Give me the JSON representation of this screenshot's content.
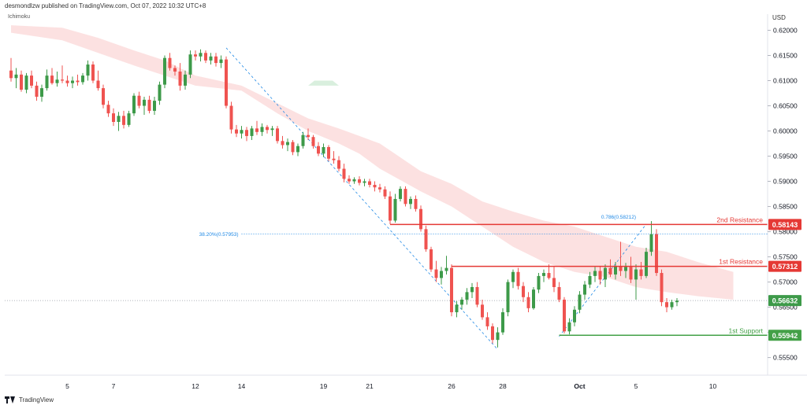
{
  "header": {
    "publisher_line": "desmondlzw published on TradingView.com, Oct 07, 2022 10:32 UTC+8"
  },
  "indicator": {
    "label": "Ichimoku"
  },
  "axis": {
    "currency": "USD"
  },
  "branding": {
    "label": "TradingView"
  },
  "colors": {
    "up": "#26a69a",
    "up_candle": "#3d9a49",
    "down": "#ef5350",
    "cloud_bear": "#fbdcdc",
    "cloud_bull": "#d9efde",
    "resistance": "#e53935",
    "support": "#43a047",
    "fib": "#1e88e5"
  },
  "chart_data": {
    "type": "candlestick",
    "title": "",
    "y_axis": {
      "ylim": [
        0.5515,
        0.6232
      ],
      "ticks": [
        "0.62000",
        "0.61500",
        "0.61000",
        "0.60500",
        "0.60000",
        "0.59500",
        "0.59000",
        "0.58500",
        "0.58000",
        "0.57500",
        "0.57000",
        "0.56500",
        "0.56000",
        "0.55500"
      ]
    },
    "x_axis": {
      "tick_labels": [
        {
          "label": "5",
          "bar": 11
        },
        {
          "label": "7",
          "bar": 20
        },
        {
          "label": "12",
          "bar": 36
        },
        {
          "label": "14",
          "bar": 45
        },
        {
          "label": "19",
          "bar": 61
        },
        {
          "label": "21",
          "bar": 70
        },
        {
          "label": "26",
          "bar": 86
        },
        {
          "label": "28",
          "bar": 96
        },
        {
          "label": "Oct",
          "bar": 111
        },
        {
          "label": "5",
          "bar": 122
        },
        {
          "label": "10",
          "bar": 137
        }
      ]
    },
    "candles": [
      {
        "o": 0.612,
        "h": 0.6145,
        "l": 0.6098,
        "c": 0.6105
      },
      {
        "o": 0.6105,
        "h": 0.6125,
        "l": 0.6085,
        "c": 0.6112
      },
      {
        "o": 0.6112,
        "h": 0.612,
        "l": 0.6078,
        "c": 0.6082
      },
      {
        "o": 0.6082,
        "h": 0.6115,
        "l": 0.6075,
        "c": 0.611
      },
      {
        "o": 0.611,
        "h": 0.612,
        "l": 0.6085,
        "c": 0.609
      },
      {
        "o": 0.609,
        "h": 0.6098,
        "l": 0.606,
        "c": 0.6068
      },
      {
        "o": 0.6068,
        "h": 0.6092,
        "l": 0.6058,
        "c": 0.6085
      },
      {
        "o": 0.6085,
        "h": 0.6122,
        "l": 0.608,
        "c": 0.611
      },
      {
        "o": 0.611,
        "h": 0.6125,
        "l": 0.6092,
        "c": 0.6095
      },
      {
        "o": 0.6095,
        "h": 0.6118,
        "l": 0.6088,
        "c": 0.6102
      },
      {
        "o": 0.6102,
        "h": 0.613,
        "l": 0.6095,
        "c": 0.61
      },
      {
        "o": 0.61,
        "h": 0.611,
        "l": 0.6088,
        "c": 0.6095
      },
      {
        "o": 0.6095,
        "h": 0.6108,
        "l": 0.6085,
        "c": 0.61
      },
      {
        "o": 0.61,
        "h": 0.6112,
        "l": 0.609,
        "c": 0.6097
      },
      {
        "o": 0.6097,
        "h": 0.6115,
        "l": 0.6092,
        "c": 0.611
      },
      {
        "o": 0.611,
        "h": 0.614,
        "l": 0.61,
        "c": 0.6132
      },
      {
        "o": 0.6132,
        "h": 0.6138,
        "l": 0.6095,
        "c": 0.61
      },
      {
        "o": 0.61,
        "h": 0.612,
        "l": 0.608,
        "c": 0.6085
      },
      {
        "o": 0.6085,
        "h": 0.6092,
        "l": 0.6045,
        "c": 0.6052
      },
      {
        "o": 0.6052,
        "h": 0.606,
        "l": 0.6028,
        "c": 0.6035
      },
      {
        "o": 0.6035,
        "h": 0.6045,
        "l": 0.601,
        "c": 0.6018
      },
      {
        "o": 0.6018,
        "h": 0.6038,
        "l": 0.6,
        "c": 0.603
      },
      {
        "o": 0.603,
        "h": 0.604,
        "l": 0.6005,
        "c": 0.6012
      },
      {
        "o": 0.6012,
        "h": 0.604,
        "l": 0.6008,
        "c": 0.6035
      },
      {
        "o": 0.6035,
        "h": 0.6075,
        "l": 0.603,
        "c": 0.607
      },
      {
        "o": 0.607,
        "h": 0.6078,
        "l": 0.6045,
        "c": 0.605
      },
      {
        "o": 0.605,
        "h": 0.6068,
        "l": 0.6032,
        "c": 0.6062
      },
      {
        "o": 0.6062,
        "h": 0.607,
        "l": 0.6035,
        "c": 0.604
      },
      {
        "o": 0.604,
        "h": 0.6068,
        "l": 0.6032,
        "c": 0.606
      },
      {
        "o": 0.606,
        "h": 0.6098,
        "l": 0.6052,
        "c": 0.6092
      },
      {
        "o": 0.6092,
        "h": 0.615,
        "l": 0.6085,
        "c": 0.6145
      },
      {
        "o": 0.6145,
        "h": 0.6155,
        "l": 0.612,
        "c": 0.6125
      },
      {
        "o": 0.6125,
        "h": 0.613,
        "l": 0.611,
        "c": 0.6118
      },
      {
        "o": 0.6118,
        "h": 0.6135,
        "l": 0.608,
        "c": 0.609
      },
      {
        "o": 0.609,
        "h": 0.612,
        "l": 0.6082,
        "c": 0.6112
      },
      {
        "o": 0.6112,
        "h": 0.616,
        "l": 0.6105,
        "c": 0.6152
      },
      {
        "o": 0.6152,
        "h": 0.616,
        "l": 0.614,
        "c": 0.6148
      },
      {
        "o": 0.6148,
        "h": 0.6162,
        "l": 0.6138,
        "c": 0.6155
      },
      {
        "o": 0.6155,
        "h": 0.616,
        "l": 0.6135,
        "c": 0.614
      },
      {
        "o": 0.614,
        "h": 0.6155,
        "l": 0.6132,
        "c": 0.6148
      },
      {
        "o": 0.6148,
        "h": 0.6155,
        "l": 0.6128,
        "c": 0.6135
      },
      {
        "o": 0.6135,
        "h": 0.615,
        "l": 0.6125,
        "c": 0.6142
      },
      {
        "o": 0.6142,
        "h": 0.6148,
        "l": 0.6045,
        "c": 0.605
      },
      {
        "o": 0.605,
        "h": 0.6058,
        "l": 0.5995,
        "c": 0.6003
      },
      {
        "o": 0.6003,
        "h": 0.6012,
        "l": 0.5988,
        "c": 0.5995
      },
      {
        "o": 0.5995,
        "h": 0.601,
        "l": 0.5985,
        "c": 0.6002
      },
      {
        "o": 0.6002,
        "h": 0.6008,
        "l": 0.598,
        "c": 0.599
      },
      {
        "o": 0.599,
        "h": 0.601,
        "l": 0.5982,
        "c": 0.6005
      },
      {
        "o": 0.6005,
        "h": 0.602,
        "l": 0.5992,
        "c": 0.5998
      },
      {
        "o": 0.5998,
        "h": 0.6015,
        "l": 0.599,
        "c": 0.6008
      },
      {
        "o": 0.6008,
        "h": 0.6012,
        "l": 0.5995,
        "c": 0.6002
      },
      {
        "o": 0.6002,
        "h": 0.601,
        "l": 0.599,
        "c": 0.6005
      },
      {
        "o": 0.6005,
        "h": 0.601,
        "l": 0.5975,
        "c": 0.598
      },
      {
        "o": 0.598,
        "h": 0.599,
        "l": 0.5965,
        "c": 0.5972
      },
      {
        "o": 0.5972,
        "h": 0.5985,
        "l": 0.596,
        "c": 0.5978
      },
      {
        "o": 0.5978,
        "h": 0.5982,
        "l": 0.5952,
        "c": 0.5958
      },
      {
        "o": 0.5958,
        "h": 0.5975,
        "l": 0.595,
        "c": 0.597
      },
      {
        "o": 0.597,
        "h": 0.5998,
        "l": 0.5965,
        "c": 0.5992
      },
      {
        "o": 0.5992,
        "h": 0.6005,
        "l": 0.5982,
        "c": 0.5988
      },
      {
        "o": 0.5988,
        "h": 0.5992,
        "l": 0.5965,
        "c": 0.597
      },
      {
        "o": 0.597,
        "h": 0.5978,
        "l": 0.595,
        "c": 0.5955
      },
      {
        "o": 0.5955,
        "h": 0.5975,
        "l": 0.5948,
        "c": 0.5968
      },
      {
        "o": 0.5968,
        "h": 0.5972,
        "l": 0.594,
        "c": 0.5945
      },
      {
        "o": 0.5945,
        "h": 0.596,
        "l": 0.5935,
        "c": 0.5942
      },
      {
        "o": 0.5942,
        "h": 0.595,
        "l": 0.592,
        "c": 0.5925
      },
      {
        "o": 0.5925,
        "h": 0.5935,
        "l": 0.5898,
        "c": 0.5905
      },
      {
        "o": 0.5905,
        "h": 0.5912,
        "l": 0.5895,
        "c": 0.59
      },
      {
        "o": 0.59,
        "h": 0.5908,
        "l": 0.5895,
        "c": 0.5904
      },
      {
        "o": 0.5904,
        "h": 0.591,
        "l": 0.5892,
        "c": 0.5897
      },
      {
        "o": 0.5897,
        "h": 0.5905,
        "l": 0.589,
        "c": 0.59
      },
      {
        "o": 0.59,
        "h": 0.5905,
        "l": 0.5888,
        "c": 0.5893
      },
      {
        "o": 0.5893,
        "h": 0.59,
        "l": 0.588,
        "c": 0.5888
      },
      {
        "o": 0.5888,
        "h": 0.5895,
        "l": 0.5878,
        "c": 0.5884
      },
      {
        "o": 0.5884,
        "h": 0.589,
        "l": 0.5865,
        "c": 0.587
      },
      {
        "o": 0.587,
        "h": 0.588,
        "l": 0.5815,
        "c": 0.5822
      },
      {
        "o": 0.5822,
        "h": 0.5875,
        "l": 0.5818,
        "c": 0.5865
      },
      {
        "o": 0.5865,
        "h": 0.589,
        "l": 0.586,
        "c": 0.5885
      },
      {
        "o": 0.5885,
        "h": 0.589,
        "l": 0.585,
        "c": 0.5855
      },
      {
        "o": 0.5855,
        "h": 0.587,
        "l": 0.5845,
        "c": 0.5865
      },
      {
        "o": 0.5865,
        "h": 0.5872,
        "l": 0.584,
        "c": 0.5845
      },
      {
        "o": 0.5845,
        "h": 0.5852,
        "l": 0.58,
        "c": 0.5805
      },
      {
        "o": 0.5805,
        "h": 0.5812,
        "l": 0.576,
        "c": 0.5765
      },
      {
        "o": 0.5765,
        "h": 0.577,
        "l": 0.572,
        "c": 0.5725
      },
      {
        "o": 0.5725,
        "h": 0.5742,
        "l": 0.57,
        "c": 0.5708
      },
      {
        "o": 0.5708,
        "h": 0.573,
        "l": 0.5695,
        "c": 0.5722
      },
      {
        "o": 0.5722,
        "h": 0.5752,
        "l": 0.5715,
        "c": 0.5728
      },
      {
        "o": 0.5728,
        "h": 0.5735,
        "l": 0.5632,
        "c": 0.564
      },
      {
        "o": 0.564,
        "h": 0.5662,
        "l": 0.563,
        "c": 0.5655
      },
      {
        "o": 0.5655,
        "h": 0.567,
        "l": 0.5645,
        "c": 0.5665
      },
      {
        "o": 0.5665,
        "h": 0.5688,
        "l": 0.5655,
        "c": 0.568
      },
      {
        "o": 0.568,
        "h": 0.5698,
        "l": 0.5668,
        "c": 0.569
      },
      {
        "o": 0.569,
        "h": 0.57,
        "l": 0.565,
        "c": 0.5655
      },
      {
        "o": 0.5655,
        "h": 0.5665,
        "l": 0.5625,
        "c": 0.563
      },
      {
        "o": 0.563,
        "h": 0.564,
        "l": 0.5605,
        "c": 0.5612
      },
      {
        "o": 0.5612,
        "h": 0.5618,
        "l": 0.5578,
        "c": 0.5585
      },
      {
        "o": 0.5585,
        "h": 0.561,
        "l": 0.557,
        "c": 0.56
      },
      {
        "o": 0.56,
        "h": 0.5648,
        "l": 0.5595,
        "c": 0.564
      },
      {
        "o": 0.564,
        "h": 0.5705,
        "l": 0.5632,
        "c": 0.57
      },
      {
        "o": 0.57,
        "h": 0.5725,
        "l": 0.5688,
        "c": 0.572
      },
      {
        "o": 0.572,
        "h": 0.5728,
        "l": 0.5685,
        "c": 0.5692
      },
      {
        "o": 0.5692,
        "h": 0.57,
        "l": 0.566,
        "c": 0.567
      },
      {
        "o": 0.567,
        "h": 0.568,
        "l": 0.564,
        "c": 0.5648
      },
      {
        "o": 0.5648,
        "h": 0.569,
        "l": 0.5645,
        "c": 0.5685
      },
      {
        "o": 0.5685,
        "h": 0.5718,
        "l": 0.5678,
        "c": 0.5712
      },
      {
        "o": 0.5712,
        "h": 0.5725,
        "l": 0.57,
        "c": 0.5718
      },
      {
        "o": 0.5718,
        "h": 0.5735,
        "l": 0.5705,
        "c": 0.5708
      },
      {
        "o": 0.5708,
        "h": 0.573,
        "l": 0.568,
        "c": 0.569
      },
      {
        "o": 0.569,
        "h": 0.57,
        "l": 0.566,
        "c": 0.5665
      },
      {
        "o": 0.5665,
        "h": 0.567,
        "l": 0.5598,
        "c": 0.5602
      },
      {
        "o": 0.5602,
        "h": 0.5628,
        "l": 0.5596,
        "c": 0.562
      },
      {
        "o": 0.562,
        "h": 0.5652,
        "l": 0.5612,
        "c": 0.5645
      },
      {
        "o": 0.5645,
        "h": 0.5682,
        "l": 0.5638,
        "c": 0.5675
      },
      {
        "o": 0.5675,
        "h": 0.5702,
        "l": 0.5665,
        "c": 0.5695
      },
      {
        "o": 0.5695,
        "h": 0.572,
        "l": 0.5688,
        "c": 0.5712
      },
      {
        "o": 0.5712,
        "h": 0.573,
        "l": 0.57,
        "c": 0.5722
      },
      {
        "o": 0.5722,
        "h": 0.5732,
        "l": 0.5695,
        "c": 0.5705
      },
      {
        "o": 0.5705,
        "h": 0.5735,
        "l": 0.569,
        "c": 0.5728
      },
      {
        "o": 0.5728,
        "h": 0.5745,
        "l": 0.571,
        "c": 0.5715
      },
      {
        "o": 0.5715,
        "h": 0.574,
        "l": 0.5705,
        "c": 0.5732
      },
      {
        "o": 0.5732,
        "h": 0.578,
        "l": 0.5712,
        "c": 0.5722
      },
      {
        "o": 0.5722,
        "h": 0.5738,
        "l": 0.5708,
        "c": 0.573
      },
      {
        "o": 0.573,
        "h": 0.575,
        "l": 0.5698,
        "c": 0.5705
      },
      {
        "o": 0.5705,
        "h": 0.5735,
        "l": 0.5665,
        "c": 0.5725
      },
      {
        "o": 0.5725,
        "h": 0.574,
        "l": 0.5705,
        "c": 0.5712
      },
      {
        "o": 0.5712,
        "h": 0.5768,
        "l": 0.5708,
        "c": 0.576
      },
      {
        "o": 0.576,
        "h": 0.5821,
        "l": 0.5752,
        "c": 0.5795
      },
      {
        "o": 0.5795,
        "h": 0.5805,
        "l": 0.5712,
        "c": 0.5718
      },
      {
        "o": 0.5718,
        "h": 0.5725,
        "l": 0.5652,
        "c": 0.566
      },
      {
        "o": 0.566,
        "h": 0.5668,
        "l": 0.564,
        "c": 0.565
      },
      {
        "o": 0.565,
        "h": 0.5665,
        "l": 0.5645,
        "c": 0.566
      },
      {
        "o": 0.566,
        "h": 0.5668,
        "l": 0.5652,
        "c": 0.5663
      }
    ],
    "cloud": {
      "upper": [
        [
          0,
          0.621
        ],
        [
          10,
          0.6205
        ],
        [
          17,
          0.6185
        ],
        [
          24,
          0.616
        ],
        [
          30,
          0.614
        ],
        [
          36,
          0.611
        ],
        [
          45,
          0.609
        ],
        [
          52,
          0.6055
        ],
        [
          58,
          0.6025
        ],
        [
          64,
          0.6005
        ],
        [
          68,
          0.599
        ],
        [
          72,
          0.5975
        ],
        [
          80,
          0.592
        ],
        [
          86,
          0.5895
        ],
        [
          92,
          0.586
        ],
        [
          98,
          0.584
        ],
        [
          104,
          0.5822
        ],
        [
          110,
          0.581
        ],
        [
          116,
          0.579
        ],
        [
          122,
          0.577
        ],
        [
          128,
          0.576
        ],
        [
          134,
          0.574
        ],
        [
          141,
          0.572
        ]
      ],
      "lower": [
        [
          0,
          0.6195
        ],
        [
          10,
          0.618
        ],
        [
          17,
          0.6155
        ],
        [
          24,
          0.613
        ],
        [
          30,
          0.611
        ],
        [
          36,
          0.609
        ],
        [
          45,
          0.608
        ],
        [
          52,
          0.6035
        ],
        [
          58,
          0.6
        ],
        [
          64,
          0.5975
        ],
        [
          68,
          0.5955
        ],
        [
          72,
          0.5925
        ],
        [
          80,
          0.588
        ],
        [
          86,
          0.585
        ],
        [
          92,
          0.581
        ],
        [
          98,
          0.577
        ],
        [
          104,
          0.574
        ],
        [
          110,
          0.572
        ],
        [
          116,
          0.571
        ],
        [
          122,
          0.569
        ],
        [
          128,
          0.568
        ],
        [
          134,
          0.5672
        ],
        [
          141,
          0.5665
        ]
      ],
      "bull_patch": {
        "start": 58,
        "end": 64,
        "upper": 0.61,
        "lower": 0.609
      }
    },
    "levels": [
      {
        "name": "2nd Resistance",
        "price": 0.58143,
        "price_label": "0.58143",
        "start_bar": 74,
        "kind": "resistance"
      },
      {
        "name": "1st Resistance",
        "price": 0.57312,
        "price_label": "0.57312",
        "start_bar": 86,
        "kind": "resistance"
      },
      {
        "name": "1st Support",
        "price": 0.55942,
        "price_label": "0.55942",
        "start_bar": 107,
        "kind": "support"
      }
    ],
    "last_price": {
      "price": 0.56632,
      "label": "0.56632"
    },
    "fib_38": {
      "label": "38.20%(0.57953)",
      "price": 0.57953,
      "start_bar": 45,
      "end_bar": 141
    },
    "fib_786": {
      "label": "0.786(0.58212)",
      "price": 0.58212,
      "bar": 122
    },
    "dashed_lines": [
      {
        "from_bar": 42,
        "from_price": 0.6165,
        "to_bar": 95,
        "to_price": 0.5566
      },
      {
        "from_bar": 107,
        "from_price": 0.5592,
        "to_bar": 124,
        "to_price": 0.5815
      }
    ]
  }
}
